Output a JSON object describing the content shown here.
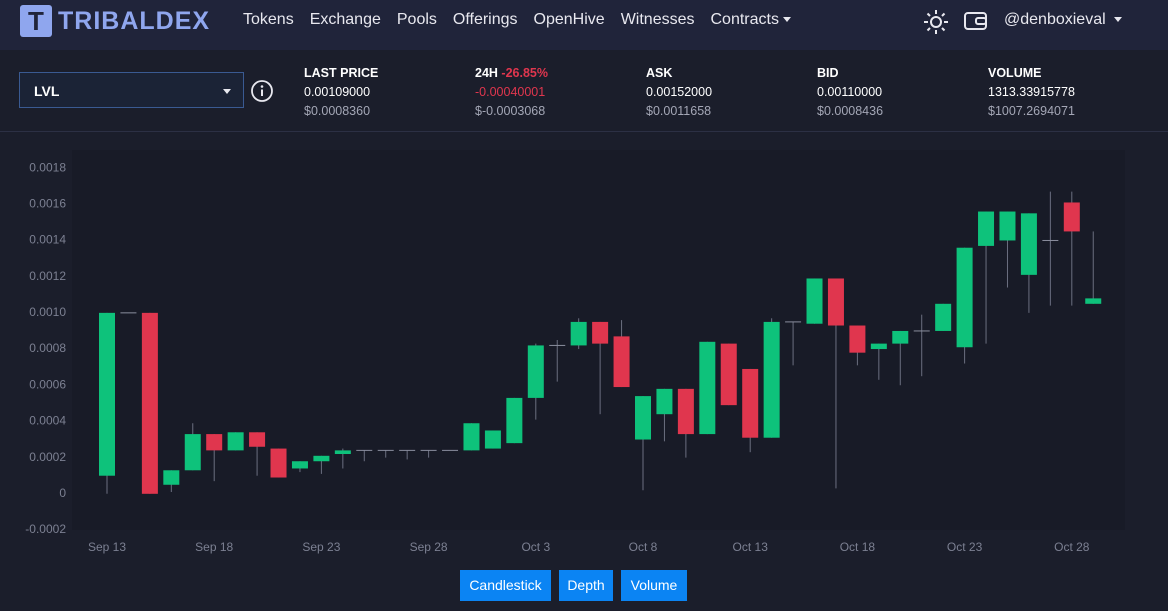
{
  "header": {
    "brand": "TRIBALDEX",
    "nav": [
      "Tokens",
      "Exchange",
      "Pools",
      "Offerings",
      "OpenHive",
      "Witnesses",
      "Contracts"
    ],
    "user": "@denboxieval"
  },
  "ticker": {
    "symbol": "LVL",
    "stats": [
      {
        "label": "LAST PRICE",
        "value": "0.00109000",
        "usd": "$0.0008360"
      },
      {
        "label": "24H",
        "change": "-26.85%",
        "value": "-0.00040001",
        "usd": "$-0.0003068"
      },
      {
        "label": "ASK",
        "value": "0.00152000",
        "usd": "$0.0011658"
      },
      {
        "label": "BID",
        "value": "0.00110000",
        "usd": "$0.0008436"
      },
      {
        "label": "VOLUME",
        "value": "1313.33915778",
        "usd": "$1007.2694071"
      }
    ]
  },
  "chart_data": {
    "type": "candlestick",
    "categories": [
      "Sep 13",
      null,
      null,
      null,
      null,
      "Sep 18",
      null,
      null,
      null,
      null,
      "Sep 23",
      null,
      null,
      null,
      null,
      "Sep 28",
      null,
      null,
      null,
      null,
      "Oct 3",
      null,
      null,
      null,
      null,
      "Oct 8",
      null,
      null,
      null,
      null,
      "Oct 13",
      null,
      null,
      null,
      null,
      "Oct 18",
      null,
      null,
      null,
      null,
      "Oct 23",
      null,
      null,
      null,
      null,
      "Oct 28",
      null
    ],
    "open": [
      0.0001,
      0.001,
      0.001,
      5e-05,
      0.00013,
      0.00033,
      0.00024,
      0.00034,
      0.00025,
      0.00014,
      0.00018,
      0.00022,
      0.00024,
      0.00024,
      0.00024,
      0.00024,
      0.00024,
      0.00024,
      0.00025,
      0.00028,
      0.00053,
      0.00082,
      0.00082,
      0.00095,
      0.00087,
      0.0003,
      0.00044,
      0.00058,
      0.00033,
      0.00083,
      0.00069,
      0.00031,
      0.00095,
      0.00094,
      0.00119,
      0.00093,
      0.0008,
      0.00083,
      0.0009,
      0.0009,
      0.00081,
      0.00137,
      0.0014,
      0.00121,
      0.0014,
      0.00161,
      0.00105
    ],
    "high": [
      0.001,
      0.001,
      0.001,
      0.00013,
      0.00039,
      0.00033,
      0.00034,
      0.00034,
      0.00025,
      0.00018,
      0.00021,
      0.00025,
      0.00024,
      0.00024,
      0.00024,
      0.00024,
      0.00024,
      0.00039,
      0.00035,
      0.00053,
      0.00083,
      0.00085,
      0.00097,
      0.00095,
      0.00096,
      0.00054,
      0.00058,
      0.00058,
      0.00084,
      0.00083,
      0.00069,
      0.00097,
      0.00095,
      0.00119,
      0.00119,
      0.00093,
      0.00083,
      0.0009,
      0.00099,
      0.00105,
      0.00136,
      0.00156,
      0.00156,
      0.00155,
      0.00167,
      0.00167,
      0.00145
    ],
    "low": [
      0,
      0.001,
      0,
      1e-05,
      0.00013,
      7e-05,
      0.00024,
      0.0001,
      9e-05,
      0.00012,
      0.00011,
      0.00014,
      0.00018,
      0.0002,
      0.00019,
      0.0002,
      0.00024,
      0.00024,
      0.00025,
      0.00028,
      0.00041,
      0.00062,
      0.0008,
      0.00044,
      0.00059,
      2e-05,
      0.00029,
      0.0002,
      0.00033,
      0.00049,
      0.00023,
      0.00031,
      0.00071,
      0.00094,
      3e-05,
      0.00071,
      0.00063,
      0.0006,
      0.00065,
      0.0009,
      0.00072,
      0.00083,
      0.00114,
      0.001,
      0.00104,
      0.00104,
      0.00105
    ],
    "close": [
      0.001,
      0.001,
      0,
      0.00013,
      0.00033,
      0.00024,
      0.00034,
      0.00026,
      9e-05,
      0.00018,
      0.00021,
      0.00024,
      0.00024,
      0.00024,
      0.00024,
      0.00024,
      0.00024,
      0.00039,
      0.00035,
      0.00053,
      0.00082,
      0.00082,
      0.00095,
      0.00083,
      0.00059,
      0.00054,
      0.00058,
      0.00033,
      0.00084,
      0.00049,
      0.00031,
      0.00095,
      0.00095,
      0.00119,
      0.00093,
      0.00078,
      0.00083,
      0.0009,
      0.0009,
      0.00105,
      0.00136,
      0.00156,
      0.00156,
      0.00155,
      0.0014,
      0.00145,
      0.00108
    ],
    "up_color": "#0ec27b",
    "down_color": "#e0364e",
    "ylim": [
      -0.0002,
      0.0019
    ],
    "yticks": [
      -0.0002,
      0,
      0.0002,
      0.0004,
      0.0006,
      0.0008,
      {
        "value": 0.001,
        "label": "0.0010"
      },
      0.0012,
      0.0014,
      0.0016,
      0.0018
    ]
  },
  "buttons": [
    "Candlestick",
    "Depth",
    "Volume"
  ]
}
